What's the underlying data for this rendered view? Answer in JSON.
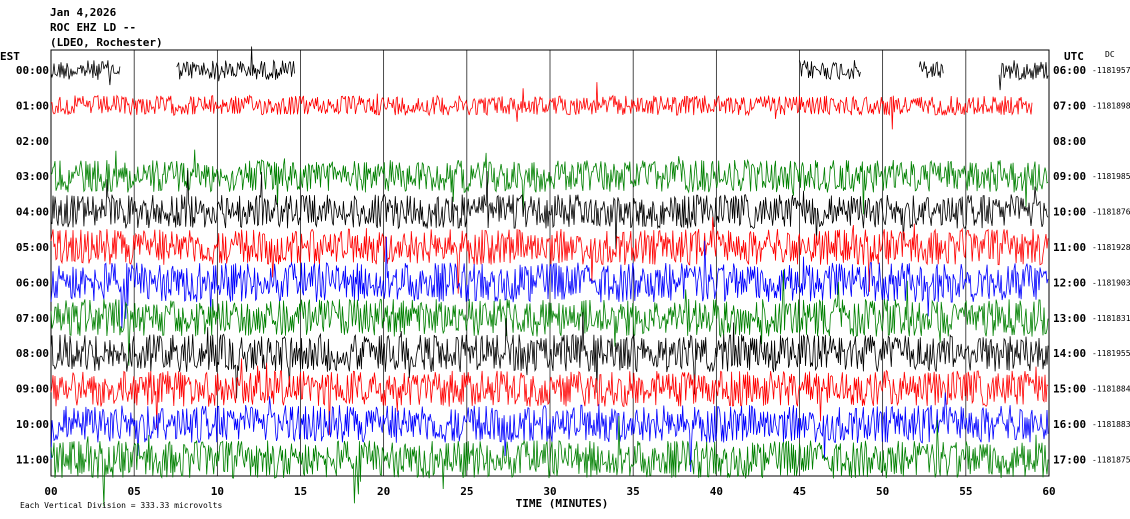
{
  "header": {
    "date": "Jan 4,2026",
    "station": "ROC EHZ LD --",
    "network": "(LDEO, Rochester)"
  },
  "labels": {
    "left_tz": "EST",
    "right_tz": "UTC",
    "dc": "DC",
    "xlabel": "TIME (MINUTES)",
    "scale_note": "Each Vertical Division =  333.33 microvolts"
  },
  "chart_data": {
    "type": "line",
    "title": "",
    "xlabel": "TIME (MINUTES)",
    "xlim": [
      0,
      60
    ],
    "x_ticks": [
      "00",
      "05",
      "10",
      "15",
      "20",
      "25",
      "30",
      "35",
      "40",
      "45",
      "50",
      "55",
      "60"
    ],
    "x_tick_values": [
      0,
      5,
      10,
      15,
      20,
      25,
      30,
      35,
      40,
      45,
      50,
      55,
      60
    ],
    "trace_color_cycle": [
      "#000000",
      "#ff0000",
      "#0000ff",
      "#008000"
    ],
    "rows": [
      {
        "est": "00:00",
        "utc": "06:00",
        "dc": "-1181957",
        "color": "#000000",
        "amplitude": 0.55,
        "data_end_min": 60,
        "gaps": [
          [
            4.2,
            7.5
          ],
          [
            14.7,
            45.0
          ],
          [
            48.7,
            52.2
          ],
          [
            53.7,
            57.0
          ]
        ]
      },
      {
        "est": "01:00",
        "utc": "07:00",
        "dc": "-1181898",
        "color": "#ff0000",
        "amplitude": 0.55,
        "data_end_min": 59
      },
      {
        "est": "02:00",
        "utc": "08:00",
        "dc": "",
        "color": "#0000ff",
        "amplitude": 0.0,
        "data_end_min": 0
      },
      {
        "est": "03:00",
        "utc": "09:00",
        "dc": "-1181985",
        "color": "#008000",
        "amplitude": 0.9,
        "data_end_min": 60
      },
      {
        "est": "04:00",
        "utc": "10:00",
        "dc": "-1181876",
        "color": "#000000",
        "amplitude": 0.95,
        "data_end_min": 60
      },
      {
        "est": "05:00",
        "utc": "11:00",
        "dc": "-1181928",
        "color": "#ff0000",
        "amplitude": 1.0,
        "data_end_min": 60
      },
      {
        "est": "06:00",
        "utc": "12:00",
        "dc": "-1181903",
        "color": "#0000ff",
        "amplitude": 1.1,
        "data_end_min": 60
      },
      {
        "est": "07:00",
        "utc": "13:00",
        "dc": "-1181831",
        "color": "#008000",
        "amplitude": 1.05,
        "data_end_min": 60
      },
      {
        "est": "08:00",
        "utc": "14:00",
        "dc": "-1181955",
        "color": "#000000",
        "amplitude": 1.05,
        "data_end_min": 60
      },
      {
        "est": "09:00",
        "utc": "15:00",
        "dc": "-1181884",
        "color": "#ff0000",
        "amplitude": 1.0,
        "data_end_min": 60
      },
      {
        "est": "10:00",
        "utc": "16:00",
        "dc": "-1181883",
        "color": "#0000ff",
        "amplitude": 1.05,
        "data_end_min": 60
      },
      {
        "est": "11:00",
        "utc": "17:00",
        "dc": "-1181875",
        "color": "#008000",
        "amplitude": 1.05,
        "data_end_min": 60
      }
    ]
  }
}
